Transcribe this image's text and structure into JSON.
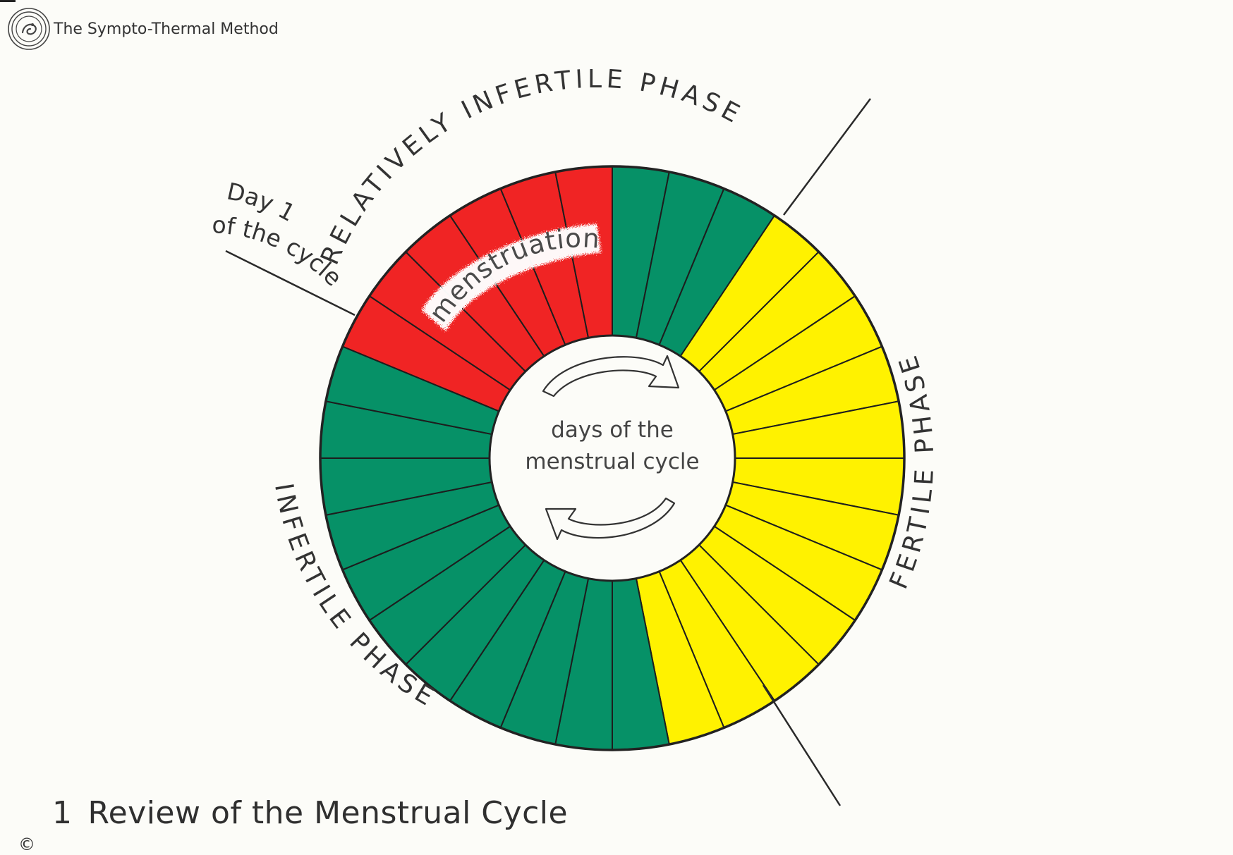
{
  "header": {
    "title": "The Sympto-Thermal Method",
    "logo_icon": "concentric-circle-logo-icon"
  },
  "diagram": {
    "center_text": {
      "line1": "days of the",
      "line2": "menstrual cycle"
    },
    "menstruation_label": "menstruation",
    "day1_label": {
      "line1": "Day 1",
      "line2": "of the cycle"
    },
    "phases": {
      "relatively_infertile": "RELATIVELY INFERTILE PHASE",
      "fertile": "FERTILE PHASE",
      "infertile": "INFERTILE PHASE"
    },
    "segments": {
      "total": 32,
      "colors": {
        "menstruation": "#f02424",
        "infertile": "#069167",
        "fertile": "#fff200"
      },
      "sequence": [
        "menstruation",
        "menstruation",
        "menstruation",
        "menstruation",
        "menstruation",
        "menstruation",
        "infertile",
        "infertile",
        "infertile",
        "fertile",
        "fertile",
        "fertile",
        "fertile",
        "fertile",
        "fertile",
        "fertile",
        "fertile",
        "fertile",
        "fertile",
        "fertile",
        "fertile",
        "infertile",
        "infertile",
        "infertile",
        "infertile",
        "infertile",
        "infertile",
        "infertile",
        "infertile",
        "infertile",
        "infertile",
        "infertile"
      ]
    },
    "arrow_icons": [
      "clockwise-arrow-top-icon",
      "clockwise-arrow-bottom-icon"
    ]
  },
  "caption": {
    "number": "1",
    "text": "Review of the Menstrual Cycle"
  },
  "copyright": "©"
}
